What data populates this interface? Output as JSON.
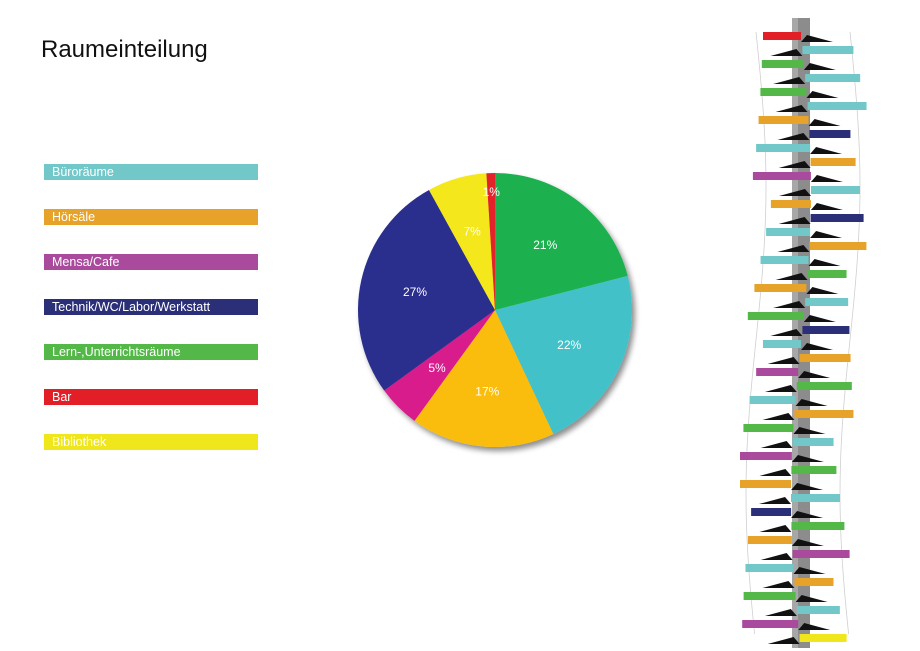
{
  "title": "Raumeinteilung",
  "chart_data": {
    "type": "pie",
    "title": "",
    "legend_position": "left",
    "slices": [
      {
        "name": "Lern-,Unterrichtsräume",
        "value": 21,
        "label": "21%",
        "color": "#1fb04f"
      },
      {
        "name": "Büroräume",
        "value": 22,
        "label": "22%",
        "color": "#43c2c8"
      },
      {
        "name": "Hörsäle",
        "value": 17,
        "label": "17%",
        "color": "#fbbd11"
      },
      {
        "name": "Mensa/Cafe",
        "value": 5,
        "label": "5%",
        "color": "#d81b8c"
      },
      {
        "name": "Technik/WC/Labor/Werkstatt",
        "value": 27,
        "label": "27%",
        "color": "#2b2f8c"
      },
      {
        "name": "Bibliothek",
        "value": 7,
        "label": "7%",
        "color": "#f4e71c"
      },
      {
        "name": "Bar",
        "value": 1,
        "label": "1%",
        "color": "#e42229"
      }
    ]
  },
  "legend": [
    {
      "label": "Büroräume",
      "color": "#72c8c9"
    },
    {
      "label": "Hörsäle",
      "color": "#e6a229"
    },
    {
      "label": "Mensa/Cafe",
      "color": "#a94a9d"
    },
    {
      "label": "Technik/WC/Labor/Werkstatt",
      "color": "#2b2f77"
    },
    {
      "label": "Lern-,Unterrichtsräume",
      "color": "#54b848"
    },
    {
      "label": "Bar",
      "color": "#e21f26"
    },
    {
      "label": "Bibliothek",
      "color": "#f0e61c"
    }
  ]
}
